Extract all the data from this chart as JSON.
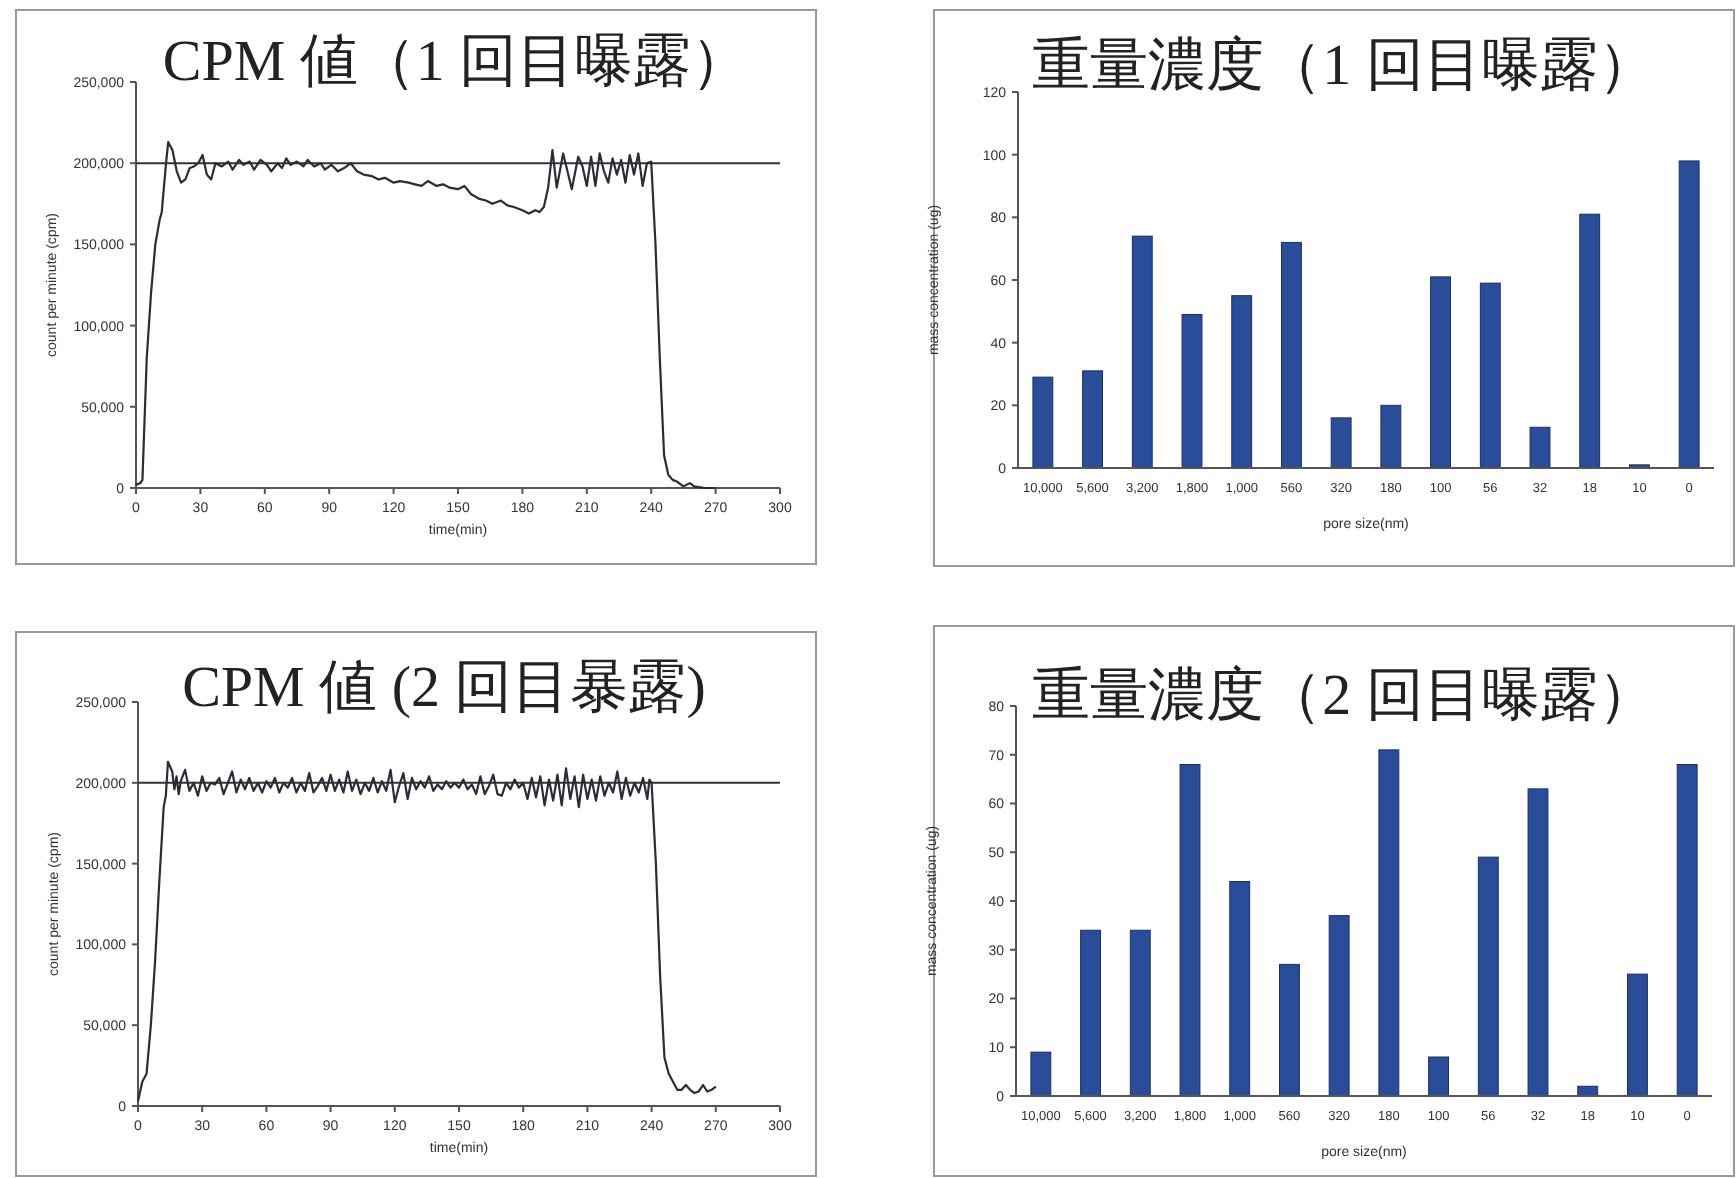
{
  "chart_data": [
    {
      "type": "line",
      "title": "CPM 値（1 回目曝露）",
      "xlabel": "time(min)",
      "ylabel": "count per minute (cpm)",
      "xlim": [
        0,
        300
      ],
      "xticks": [
        0,
        30,
        60,
        90,
        120,
        150,
        180,
        210,
        240,
        270,
        300
      ],
      "ylim": [
        0,
        250000
      ],
      "yticks": [
        0,
        {
          "value": 50000,
          "label": "50,000"
        },
        {
          "value": 100000,
          "label": "100,000"
        },
        {
          "value": 150000,
          "label": "150,000"
        },
        {
          "value": 200000,
          "label": "200,000"
        },
        {
          "value": 250000,
          "label": "250,000"
        }
      ],
      "grid": false,
      "marker": "none",
      "line_style": "solid",
      "ref_lines": [
        {
          "axis": "y",
          "value": 200000,
          "color": "#333333"
        }
      ],
      "series": [
        {
          "color": "#2b2b3a",
          "x": [
            0,
            2,
            3,
            5,
            7,
            9,
            11,
            12,
            14,
            15,
            17,
            19,
            21,
            23,
            25,
            27,
            29,
            31,
            33,
            35,
            37,
            40,
            43,
            45,
            48,
            50,
            53,
            55,
            58,
            61,
            63,
            66,
            68,
            70,
            72,
            75,
            78,
            80,
            83,
            86,
            88,
            91,
            94,
            97,
            100,
            103,
            106,
            110,
            113,
            116,
            120,
            123,
            127,
            130,
            133,
            136,
            140,
            143,
            146,
            150,
            153,
            156,
            160,
            163,
            166,
            170,
            173,
            176,
            180,
            183,
            186,
            188,
            190,
            192,
            194,
            196,
            199,
            201,
            203,
            206,
            208,
            210,
            212,
            214,
            216,
            218,
            220,
            222,
            224,
            226,
            228,
            230,
            232,
            234,
            236,
            238,
            240,
            242,
            244,
            246,
            248,
            250,
            252,
            255,
            258,
            260,
            265,
            270
          ],
          "values": [
            2000,
            3000,
            5000,
            80000,
            120000,
            150000,
            165000,
            170000,
            200000,
            213000,
            208000,
            195000,
            188000,
            190000,
            197000,
            198000,
            200000,
            205000,
            193000,
            190000,
            200000,
            198000,
            201000,
            196000,
            202000,
            199000,
            201000,
            196000,
            202000,
            199000,
            195000,
            200000,
            197000,
            203000,
            199000,
            201000,
            198000,
            202000,
            198000,
            200000,
            196000,
            199000,
            195000,
            197000,
            200000,
            195000,
            193000,
            192000,
            190000,
            191000,
            188000,
            189000,
            188000,
            187000,
            186000,
            189000,
            186000,
            187000,
            185000,
            184000,
            186000,
            181000,
            178000,
            177000,
            175000,
            177000,
            174000,
            173000,
            171000,
            169000,
            171000,
            170000,
            173000,
            185000,
            208000,
            185000,
            206000,
            195000,
            184000,
            204000,
            198000,
            186000,
            204000,
            186000,
            206000,
            195000,
            188000,
            203000,
            193000,
            202000,
            188000,
            205000,
            193000,
            206000,
            186000,
            200000,
            201000,
            150000,
            80000,
            20000,
            8000,
            5000,
            4000,
            1000,
            3000,
            1000,
            0,
            0
          ]
        }
      ]
    },
    {
      "type": "bar",
      "title": "重量濃度（1 回目曝露）",
      "xlabel": "pore size(nm)",
      "ylabel": "mass concentration (ug)",
      "categories": [
        "10,000",
        "5,600",
        "3,200",
        "1,800",
        "1,000",
        "560",
        "320",
        "180",
        "100",
        "56",
        "32",
        "18",
        "10",
        "0"
      ],
      "values": [
        29,
        31,
        74,
        49,
        55,
        72,
        16,
        20,
        61,
        59,
        13,
        81,
        1,
        98
      ],
      "color": "#2a4d9a",
      "ylim": [
        0,
        120
      ],
      "yticks": [
        0,
        20,
        40,
        60,
        80,
        100,
        120
      ],
      "grid": false
    },
    {
      "type": "line",
      "title": "CPM 値 (2 回目暴露)",
      "xlabel": "time(min)",
      "ylabel": "count per minute (cpm)",
      "xlim": [
        0,
        300
      ],
      "xticks": [
        0,
        30,
        60,
        90,
        120,
        150,
        180,
        210,
        240,
        270,
        300
      ],
      "ylim": [
        0,
        250000
      ],
      "yticks": [
        0,
        {
          "value": 50000,
          "label": "50,000"
        },
        {
          "value": 100000,
          "label": "100,000"
        },
        {
          "value": 150000,
          "label": "150,000"
        },
        {
          "value": 200000,
          "label": "200,000"
        },
        {
          "value": 250000,
          "label": "250,000"
        }
      ],
      "grid": false,
      "marker": "none",
      "line_style": "solid",
      "ref_lines": [
        {
          "axis": "y",
          "value": 200000,
          "color": "#333333"
        }
      ],
      "series": [
        {
          "color": "#2b2b3a",
          "x": [
            0,
            2,
            4,
            6,
            8,
            10,
            12,
            13,
            14,
            16,
            17,
            18,
            19,
            20,
            22,
            24,
            26,
            28,
            30,
            32,
            34,
            36,
            38,
            40,
            42,
            44,
            46,
            48,
            50,
            52,
            54,
            56,
            58,
            60,
            62,
            64,
            66,
            68,
            70,
            72,
            74,
            76,
            78,
            80,
            82,
            84,
            86,
            88,
            90,
            92,
            94,
            96,
            98,
            100,
            102,
            104,
            106,
            108,
            110,
            112,
            114,
            116,
            118,
            120,
            122,
            124,
            126,
            128,
            130,
            132,
            134,
            136,
            138,
            140,
            142,
            144,
            146,
            148,
            150,
            152,
            154,
            156,
            158,
            160,
            162,
            164,
            166,
            168,
            170,
            172,
            174,
            176,
            178,
            180,
            182,
            184,
            186,
            188,
            190,
            192,
            194,
            196,
            198,
            200,
            202,
            204,
            206,
            208,
            210,
            212,
            214,
            216,
            218,
            220,
            222,
            224,
            226,
            228,
            230,
            232,
            234,
            236,
            238,
            239,
            240,
            242,
            244,
            246,
            248,
            250,
            252,
            254,
            256,
            258,
            260,
            262,
            264,
            266,
            268,
            270
          ],
          "values": [
            3000,
            15000,
            20000,
            50000,
            90000,
            140000,
            185000,
            192000,
            213000,
            207000,
            196000,
            204000,
            193000,
            201000,
            208000,
            195000,
            200000,
            192000,
            204000,
            195000,
            200000,
            199000,
            203000,
            193000,
            200000,
            207000,
            194000,
            202000,
            196000,
            203000,
            195000,
            200000,
            194000,
            201000,
            197000,
            203000,
            194000,
            200000,
            197000,
            203000,
            194000,
            200000,
            195000,
            206000,
            194000,
            198000,
            203000,
            195000,
            205000,
            195000,
            202000,
            194000,
            207000,
            195000,
            202000,
            193000,
            200000,
            195000,
            203000,
            194000,
            201000,
            195000,
            208000,
            188000,
            198000,
            206000,
            190000,
            203000,
            196000,
            201000,
            197000,
            204000,
            195000,
            199000,
            196000,
            201000,
            197000,
            200000,
            197000,
            202000,
            196000,
            199000,
            193000,
            204000,
            193000,
            198000,
            205000,
            193000,
            192000,
            200000,
            196000,
            202000,
            197000,
            200000,
            190000,
            203000,
            191000,
            204000,
            186000,
            202000,
            189000,
            205000,
            186000,
            209000,
            190000,
            204000,
            185000,
            205000,
            190000,
            202000,
            189000,
            204000,
            192000,
            200000,
            194000,
            207000,
            190000,
            203000,
            192000,
            200000,
            194000,
            203000,
            190000,
            202000,
            200000,
            150000,
            80000,
            30000,
            20000,
            15000,
            10000,
            10000,
            13000,
            10000,
            8000,
            9000,
            13000,
            9000,
            10000,
            12000
          ]
        }
      ]
    },
    {
      "type": "bar",
      "title": "重量濃度（2 回目曝露）",
      "xlabel": "pore size(nm)",
      "ylabel": "mass concentration (ug)",
      "categories": [
        "10,000",
        "5,600",
        "3,200",
        "1,800",
        "1,000",
        "560",
        "320",
        "180",
        "100",
        "56",
        "32",
        "18",
        "10",
        "0"
      ],
      "values": [
        9,
        34,
        34,
        68,
        44,
        27,
        37,
        71,
        8,
        49,
        63,
        2,
        25,
        68
      ],
      "color": "#2a4d9a",
      "ylim": [
        0,
        80
      ],
      "yticks": [
        0,
        10,
        20,
        30,
        40,
        50,
        60,
        70,
        80
      ],
      "grid": false
    }
  ]
}
